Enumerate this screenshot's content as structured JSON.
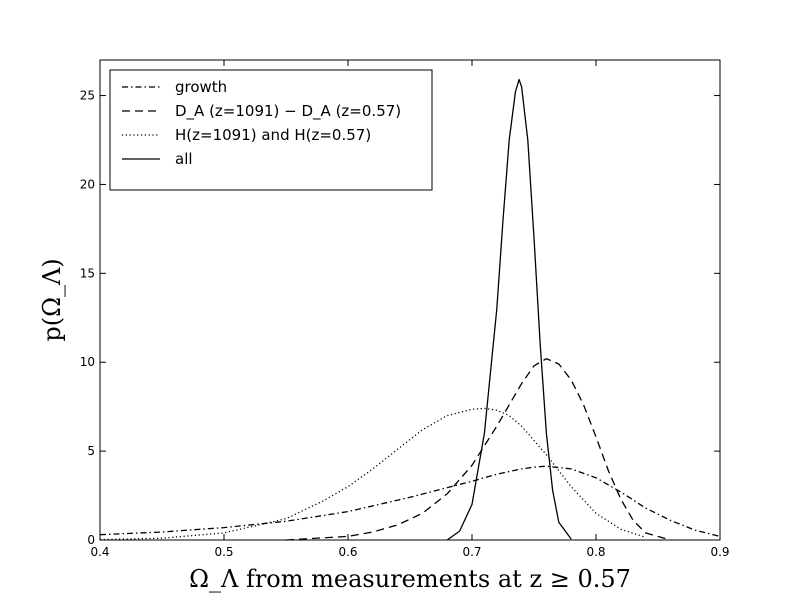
{
  "chart_data": {
    "type": "line",
    "xlabel": "Ω_Λ  from measurements at z ≥ 0.57",
    "ylabel": "p(Ω_Λ)",
    "xlim": [
      0.4,
      0.9
    ],
    "ylim": [
      0,
      27
    ],
    "x_ticks": [
      "0.4",
      "0.5",
      "0.6",
      "0.7",
      "0.8",
      "0.9"
    ],
    "y_ticks": [
      "0",
      "5",
      "10",
      "15",
      "20",
      "25"
    ],
    "grid": false,
    "legend_position": "top-left",
    "series": [
      {
        "name": "growth",
        "style": "dashdot",
        "x": [
          0.4,
          0.45,
          0.5,
          0.55,
          0.6,
          0.65,
          0.7,
          0.72,
          0.74,
          0.75,
          0.76,
          0.78,
          0.8,
          0.82,
          0.84,
          0.86,
          0.88,
          0.9
        ],
        "y": [
          0.3,
          0.45,
          0.7,
          1.05,
          1.6,
          2.4,
          3.3,
          3.7,
          4.0,
          4.1,
          4.15,
          4.0,
          3.5,
          2.7,
          1.8,
          1.1,
          0.55,
          0.2
        ]
      },
      {
        "name": "D_A (z=1091) − D_A (z=0.57)",
        "style": "dashed",
        "x": [
          0.55,
          0.6,
          0.62,
          0.64,
          0.66,
          0.68,
          0.7,
          0.72,
          0.74,
          0.75,
          0.76,
          0.77,
          0.78,
          0.79,
          0.8,
          0.81,
          0.82,
          0.83,
          0.84,
          0.86
        ],
        "y": [
          0.0,
          0.2,
          0.45,
          0.85,
          1.5,
          2.6,
          4.2,
          6.4,
          8.8,
          9.8,
          10.2,
          9.9,
          9.0,
          7.6,
          5.8,
          3.9,
          2.3,
          1.1,
          0.4,
          0.0
        ]
      },
      {
        "name": "H(z=1091) and H(z=0.57)",
        "style": "dotted",
        "x": [
          0.4,
          0.45,
          0.5,
          0.55,
          0.58,
          0.6,
          0.62,
          0.64,
          0.66,
          0.68,
          0.7,
          0.71,
          0.72,
          0.73,
          0.74,
          0.76,
          0.78,
          0.8,
          0.82,
          0.84
        ],
        "y": [
          0.02,
          0.1,
          0.4,
          1.2,
          2.2,
          3.0,
          4.0,
          5.1,
          6.2,
          7.0,
          7.35,
          7.4,
          7.3,
          7.0,
          6.4,
          4.8,
          3.0,
          1.5,
          0.6,
          0.15
        ]
      },
      {
        "name": "all",
        "style": "solid",
        "x": [
          0.68,
          0.69,
          0.7,
          0.71,
          0.72,
          0.725,
          0.73,
          0.735,
          0.738,
          0.74,
          0.745,
          0.75,
          0.755,
          0.76,
          0.765,
          0.77,
          0.78
        ],
        "y": [
          0.0,
          0.5,
          2.0,
          6.0,
          13.0,
          18.0,
          22.5,
          25.2,
          25.9,
          25.5,
          22.5,
          17.0,
          11.0,
          6.0,
          2.8,
          1.0,
          0.05
        ]
      }
    ]
  }
}
